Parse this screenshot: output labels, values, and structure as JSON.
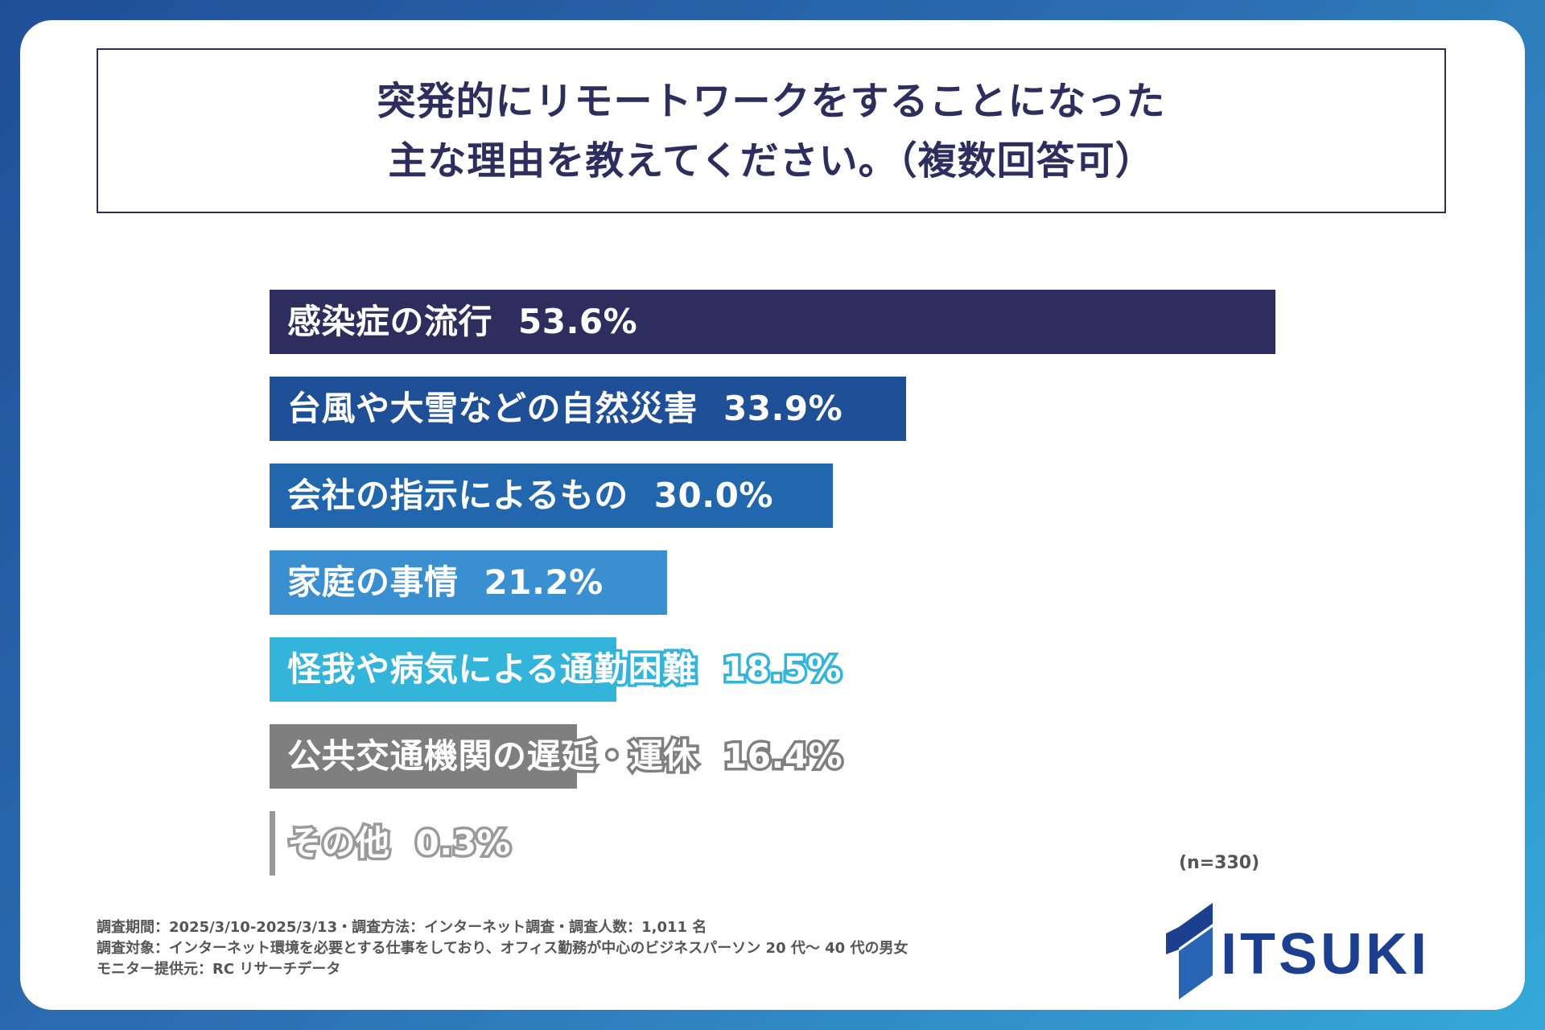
{
  "title": {
    "line1": "突発的にリモートワークをすることになった",
    "line2": "主な理由を教えてください。（複数回答可）"
  },
  "colors": {
    "background": "#2b6cb0",
    "bar_colors": [
      "#2e2e5e",
      "#1e4f97",
      "#2267ad",
      "#3a8fd1",
      "#33b4db",
      "#7f7f7f",
      "#9a9a9a"
    ],
    "title": "#2e2e5e",
    "logo": "#1d3f8f"
  },
  "chart_data": {
    "type": "bar",
    "orientation": "horizontal",
    "categories": [
      "感染症の流行",
      "台風や大雪などの自然災害",
      "会社の指示によるもの",
      "家庭の事情",
      "怪我や病気による通勤困難",
      "公共交通機関の遅延・運休",
      "その他"
    ],
    "values": [
      53.6,
      33.9,
      30.0,
      21.2,
      18.5,
      16.4,
      0.3
    ],
    "value_labels": [
      "53.6%",
      "33.9%",
      "30.0%",
      "21.2%",
      "18.5%",
      "16.4%",
      "0.3%"
    ],
    "xlim": [
      0,
      53.6
    ],
    "grid": false,
    "legend": "none"
  },
  "n_note": "(n=330)",
  "footer": {
    "line1": "調査期間：2025/3/10-2025/3/13・調査方法：インターネット調査・調査人数：1,011 名",
    "line2": "調査対象：インターネット環境を必要とする仕事をしており、オフィス勤務が中心のビジネスパーソン 20 代〜 40 代の男女",
    "line3": "モニター提供元：RC リサーチデータ"
  },
  "logo": {
    "text": "ITSUKI"
  }
}
